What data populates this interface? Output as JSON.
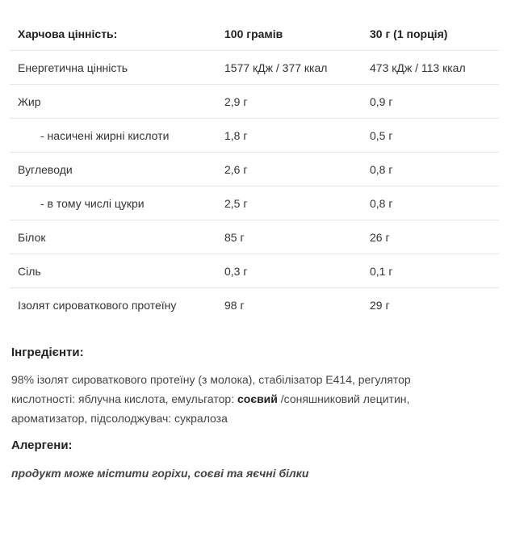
{
  "table": {
    "header": [
      "Харчова цінність:",
      "100 грамів",
      "30 г (1 порція)"
    ],
    "rows": [
      {
        "name": "Енергетична цінність",
        "per100": "1577 кДж / 377 ккал",
        "perServing": "473 кДж / 113 ккал",
        "indent": false
      },
      {
        "name": "Жир",
        "per100": "2,9 г",
        "perServing": "0,9 г",
        "indent": false
      },
      {
        "name": "- насичені жирні кислоти",
        "per100": "1,8 г",
        "perServing": "0,5 г",
        "indent": true
      },
      {
        "name": "Вуглеводи",
        "per100": "2,6 г",
        "perServing": "0,8 г",
        "indent": false
      },
      {
        "name": "- в тому числі цукри",
        "per100": "2,5 г",
        "perServing": "0,8 г",
        "indent": true
      },
      {
        "name": "Білок",
        "per100": "85 г",
        "perServing": "26 г",
        "indent": false
      },
      {
        "name": "Сіль",
        "per100": "0,3 г",
        "perServing": "0,1 г",
        "indent": false
      },
      {
        "name": "Ізолят сироваткового протеїну",
        "per100": "98 г",
        "perServing": "29 г",
        "indent": false
      }
    ]
  },
  "ingredients": {
    "title": "Інгредієнти:",
    "text_before": "98% ізолят сироваткового протеїну (з молока), стабілізатор E414, регулятор кислотності: яблучна кислота, емульгатор: ",
    "bold": "соєвий",
    "text_after": " /соняшниковий лецитин, ароматизатор, підсолоджувач: сукралоза"
  },
  "allergens": {
    "title": "Алергени:",
    "text": "продукт може містити горіхи, соєві та яєчні білки"
  }
}
